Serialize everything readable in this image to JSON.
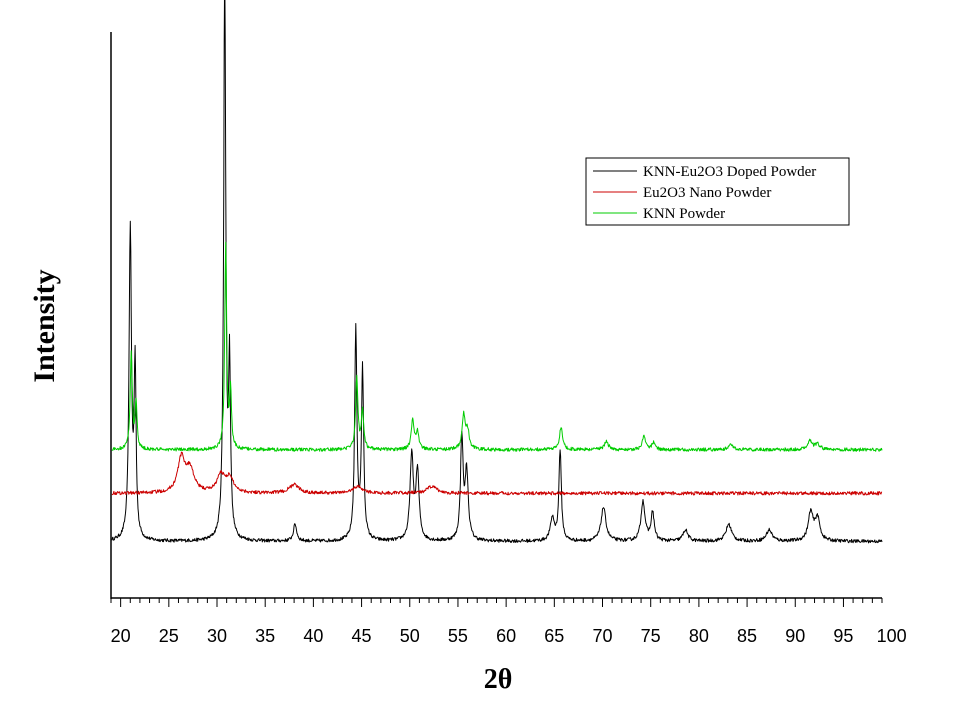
{
  "chart_data": {
    "type": "line",
    "xlabel": "2θ",
    "ylabel": "Intensity",
    "xlim": [
      19,
      99
    ],
    "xticks": [
      20,
      25,
      30,
      35,
      40,
      45,
      50,
      55,
      60,
      65,
      70,
      75,
      80,
      85,
      90,
      95,
      100
    ],
    "ylim": [
      0,
      1
    ],
    "grid": false,
    "legend": {
      "position": "top-right"
    },
    "series": [
      {
        "name": "KNN-Eu2O3 Doped Powder",
        "color": "#000000",
        "baseline": 0.1,
        "peaks": [
          [
            21.0,
            0.55,
            0.15
          ],
          [
            21.5,
            0.3,
            0.12
          ],
          [
            30.8,
            1.0,
            0.13
          ],
          [
            31.3,
            0.3,
            0.12
          ],
          [
            38.1,
            0.03,
            0.2
          ],
          [
            44.4,
            0.37,
            0.14
          ],
          [
            45.1,
            0.3,
            0.14
          ],
          [
            50.2,
            0.15,
            0.2
          ],
          [
            50.8,
            0.12,
            0.2
          ],
          [
            55.4,
            0.18,
            0.16
          ],
          [
            55.9,
            0.12,
            0.2
          ],
          [
            64.8,
            0.04,
            0.25
          ],
          [
            65.6,
            0.16,
            0.15
          ],
          [
            70.1,
            0.06,
            0.3
          ],
          [
            74.2,
            0.07,
            0.25
          ],
          [
            75.2,
            0.05,
            0.2
          ],
          [
            78.6,
            0.02,
            0.3
          ],
          [
            83.1,
            0.03,
            0.35
          ],
          [
            87.3,
            0.02,
            0.35
          ],
          [
            91.6,
            0.05,
            0.3
          ],
          [
            92.3,
            0.04,
            0.3
          ]
        ]
      },
      {
        "name": "Eu2O3 Nano Powder",
        "color": "#cc0000",
        "baseline": 0.185,
        "peaks": [
          [
            26.3,
            0.06,
            0.45
          ],
          [
            27.2,
            0.04,
            0.5
          ],
          [
            30.4,
            0.03,
            0.5
          ],
          [
            31.3,
            0.025,
            0.5
          ],
          [
            38.0,
            0.015,
            0.6
          ],
          [
            44.6,
            0.012,
            0.6
          ],
          [
            52.3,
            0.012,
            0.6
          ]
        ]
      },
      {
        "name": "KNN Powder",
        "color": "#00cc00",
        "baseline": 0.262,
        "peaks": [
          [
            21.1,
            0.17,
            0.13
          ],
          [
            21.6,
            0.08,
            0.12
          ],
          [
            30.9,
            0.36,
            0.12
          ],
          [
            31.4,
            0.1,
            0.12
          ],
          [
            44.5,
            0.13,
            0.14
          ],
          [
            45.1,
            0.07,
            0.14
          ],
          [
            50.3,
            0.05,
            0.18
          ],
          [
            50.8,
            0.03,
            0.18
          ],
          [
            55.6,
            0.06,
            0.2
          ],
          [
            56.0,
            0.03,
            0.2
          ],
          [
            65.7,
            0.04,
            0.2
          ],
          [
            70.4,
            0.015,
            0.25
          ],
          [
            74.3,
            0.025,
            0.2
          ],
          [
            75.3,
            0.012,
            0.2
          ],
          [
            83.3,
            0.01,
            0.3
          ],
          [
            91.5,
            0.015,
            0.3
          ],
          [
            92.3,
            0.01,
            0.3
          ]
        ]
      }
    ]
  }
}
